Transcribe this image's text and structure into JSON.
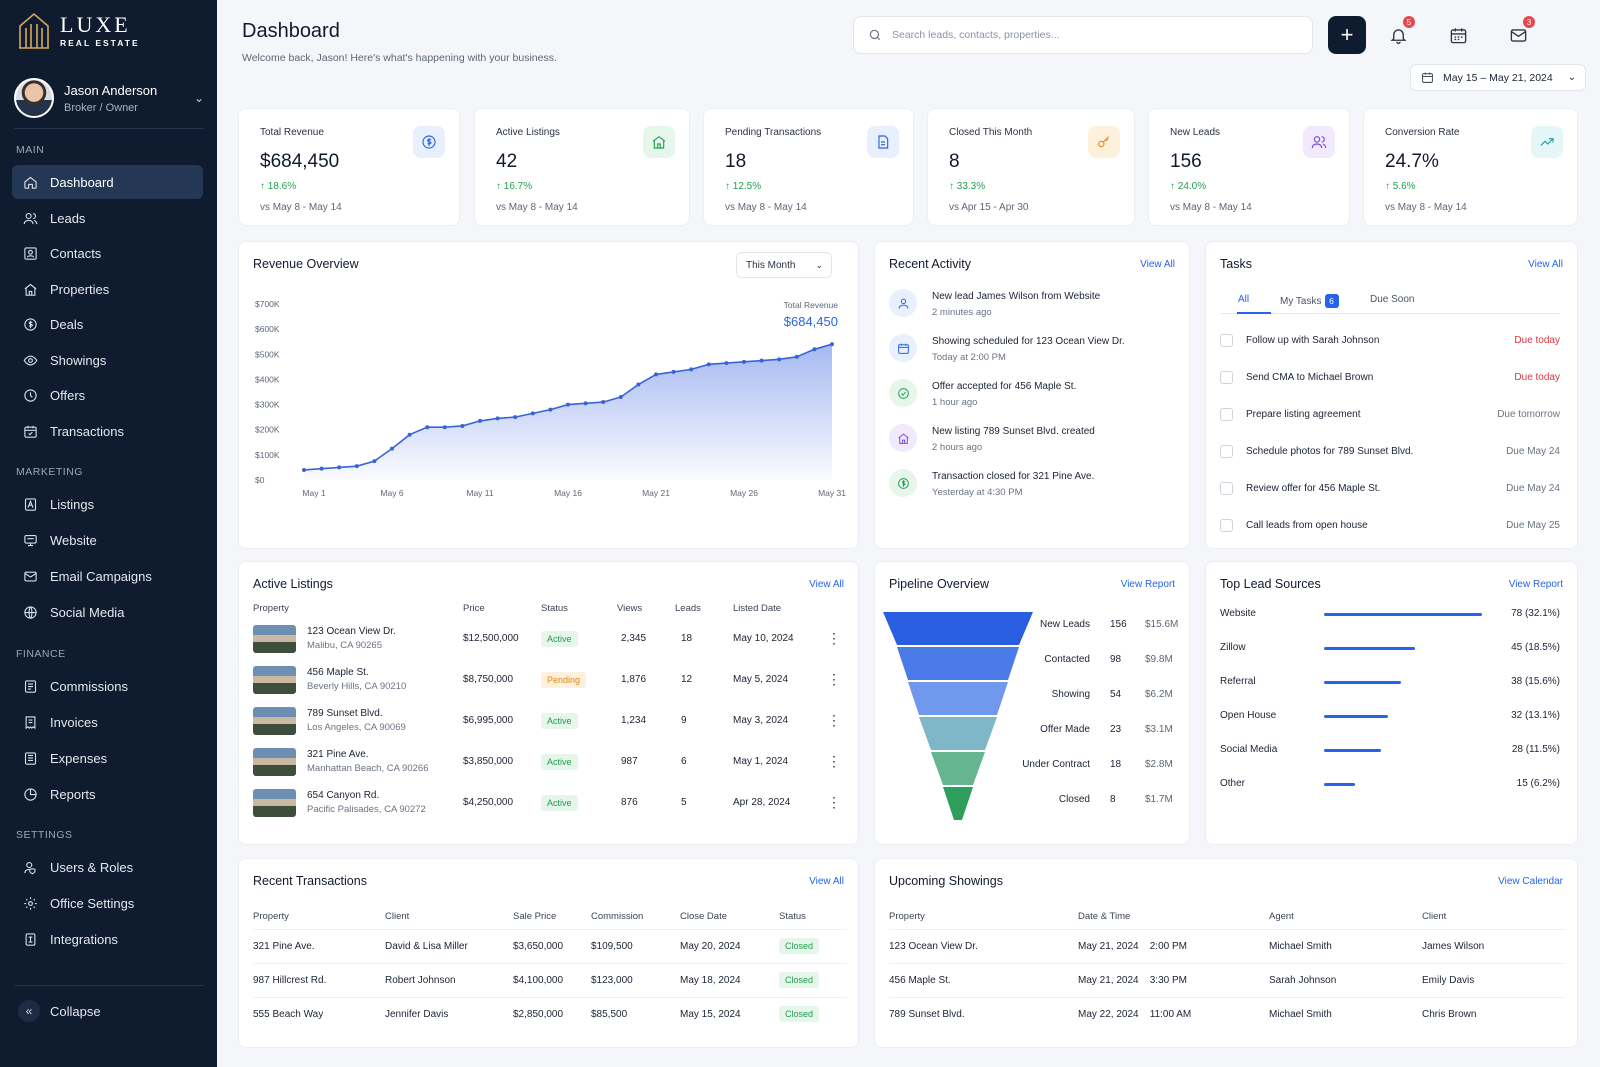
{
  "brand": {
    "name": "LUXE",
    "sub": "REAL ESTATE"
  },
  "profile": {
    "name": "Jason Anderson",
    "role": "Broker / Owner"
  },
  "sidebar": {
    "sections": [
      "MAIN",
      "MARKETING",
      "FINANCE",
      "SETTINGS"
    ],
    "main": [
      {
        "label": "Dashboard",
        "icon": "home-icon"
      },
      {
        "label": "Leads",
        "icon": "users-icon"
      },
      {
        "label": "Contacts",
        "icon": "contact-card-icon"
      },
      {
        "label": "Properties",
        "icon": "house-icon"
      },
      {
        "label": "Deals",
        "icon": "dollar-circle-icon"
      },
      {
        "label": "Showings",
        "icon": "eye-icon"
      },
      {
        "label": "Offers",
        "icon": "tag-icon"
      },
      {
        "label": "Transactions",
        "icon": "calendar-check-icon"
      }
    ],
    "marketing": [
      {
        "label": "Listings",
        "icon": "list-icon"
      },
      {
        "label": "Website",
        "icon": "monitor-icon"
      },
      {
        "label": "Email Campaigns",
        "icon": "mail-icon"
      },
      {
        "label": "Social Media",
        "icon": "globe-icon"
      }
    ],
    "finance": [
      {
        "label": "Commissions",
        "icon": "receipt-icon"
      },
      {
        "label": "Invoices",
        "icon": "invoice-icon"
      },
      {
        "label": "Expenses",
        "icon": "expense-icon"
      },
      {
        "label": "Reports",
        "icon": "chart-icon"
      }
    ],
    "settings": [
      {
        "label": "Users & Roles",
        "icon": "user-shield-icon"
      },
      {
        "label": "Office Settings",
        "icon": "gear-icon"
      },
      {
        "label": "Integrations",
        "icon": "plug-icon"
      }
    ],
    "collapse": "Collapse"
  },
  "header": {
    "title": "Dashboard",
    "subtitle": "Welcome back, Jason! Here's what's happening with your business.",
    "search_placeholder": "Search leads, contacts, properties...",
    "add_label": "+",
    "notif_count": "5",
    "msg_count": "3",
    "date_range": "May 15 – May 21, 2024"
  },
  "kpis": [
    {
      "label": "Total Revenue",
      "value": "$684,450",
      "delta": "18.6%",
      "compare": "vs May 8 - May 14",
      "icon": "dollar-icon",
      "color": "#2563eb",
      "bg": "#e8effd"
    },
    {
      "label": "Active Listings",
      "value": "42",
      "delta": "16.7%",
      "compare": "vs May 8 - May 14",
      "icon": "house-icon",
      "color": "#22a052",
      "bg": "#e6f6ea"
    },
    {
      "label": "Pending Transactions",
      "value": "18",
      "delta": "12.5%",
      "compare": "vs May 8 - May 14",
      "icon": "document-icon",
      "color": "#2563eb",
      "bg": "#e8effd"
    },
    {
      "label": "Closed This Month",
      "value": "8",
      "delta": "33.3%",
      "compare": "vs Apr 15 - Apr 30",
      "icon": "key-icon",
      "color": "#e38b1c",
      "bg": "#fdf1de"
    },
    {
      "label": "New Leads",
      "value": "156",
      "delta": "24.0%",
      "compare": "vs May 8 - May 14",
      "icon": "users-icon",
      "color": "#7c4ddb",
      "bg": "#f0eafc"
    },
    {
      "label": "Conversion Rate",
      "value": "24.7%",
      "delta": "5.6%",
      "compare": "vs May 8 - May 14",
      "icon": "trend-up-icon",
      "color": "#14a3a0",
      "bg": "#e4f6f5"
    }
  ],
  "revenue": {
    "title": "Revenue Overview",
    "period": "This Month",
    "total_label": "Total Revenue",
    "total_value": "$684,450",
    "y_ticks": [
      "$700K",
      "$600K",
      "$500K",
      "$400K",
      "$300K",
      "$200K",
      "$100K",
      "$0"
    ],
    "x_ticks": [
      "May 1",
      "May 6",
      "May 11",
      "May 16",
      "May 21",
      "May 26",
      "May 31"
    ]
  },
  "chart_data": {
    "type": "area",
    "title": "Revenue Overview",
    "ylim": [
      0,
      700000
    ],
    "x": [
      1,
      2,
      3,
      4,
      5,
      6,
      7,
      8,
      9,
      10,
      11,
      12,
      13,
      14,
      15,
      16,
      17,
      18,
      19,
      20,
      21,
      22,
      23,
      24,
      25,
      26,
      27,
      28,
      29,
      30,
      31
    ],
    "values": [
      40000,
      45000,
      50000,
      55000,
      75000,
      125000,
      180000,
      210000,
      210000,
      215000,
      235000,
      245000,
      250000,
      265000,
      280000,
      300000,
      305000,
      310000,
      330000,
      380000,
      420000,
      430000,
      440000,
      460000,
      465000,
      470000,
      475000,
      480000,
      490000,
      520000,
      540000
    ],
    "grid": false
  },
  "activity": {
    "title": "Recent Activity",
    "view_all": "View All",
    "items": [
      {
        "text": "New lead James Wilson from Website",
        "time": "2 minutes ago",
        "icon": "user-icon",
        "color": "#2563eb",
        "bg": "#e8effd"
      },
      {
        "text": "Showing scheduled for 123 Ocean View Dr.",
        "time": "Today at 2:00 PM",
        "icon": "calendar-icon",
        "color": "#2563eb",
        "bg": "#e8effd"
      },
      {
        "text": "Offer accepted for 456 Maple St.",
        "time": "1 hour ago",
        "icon": "check-circle-icon",
        "color": "#22a052",
        "bg": "#e6f6ea"
      },
      {
        "text": "New listing 789 Sunset Blvd. created",
        "time": "2 hours ago",
        "icon": "house-icon",
        "color": "#7c4ddb",
        "bg": "#f0eafc"
      },
      {
        "text": "Transaction closed for 321 Pine Ave.",
        "time": "Yesterday at 4:30 PM",
        "icon": "dollar-icon",
        "color": "#22a052",
        "bg": "#e6f6ea"
      }
    ]
  },
  "tasks": {
    "title": "Tasks",
    "view_all": "View All",
    "tabs": {
      "all": "All",
      "mine": "My Tasks",
      "mine_count": "6",
      "soon": "Due Soon"
    },
    "items": [
      {
        "text": "Follow up with Sarah Johnson",
        "due": "Due today",
        "urgent": true
      },
      {
        "text": "Send CMA to Michael Brown",
        "due": "Due today",
        "urgent": true
      },
      {
        "text": "Prepare listing agreement",
        "due": "Due tomorrow",
        "urgent": false
      },
      {
        "text": "Schedule photos for 789 Sunset Blvd.",
        "due": "Due May 24",
        "urgent": false
      },
      {
        "text": "Review offer for 456 Maple St.",
        "due": "Due May 24",
        "urgent": false
      },
      {
        "text": "Call leads from open house",
        "due": "Due May 25",
        "urgent": false
      }
    ]
  },
  "listings": {
    "title": "Active Listings",
    "view_all": "View All",
    "headers": [
      "Property",
      "Price",
      "Status",
      "Views",
      "Leads",
      "Listed Date"
    ],
    "rows": [
      {
        "name": "123 Ocean View Dr.",
        "addr": "Malibu, CA 90265",
        "price": "$12,500,000",
        "status": "Active",
        "views": "2,345",
        "leads": "18",
        "date": "May 10, 2024"
      },
      {
        "name": "456 Maple St.",
        "addr": "Beverly Hills, CA 90210",
        "price": "$8,750,000",
        "status": "Pending",
        "views": "1,876",
        "leads": "12",
        "date": "May 5, 2024"
      },
      {
        "name": "789 Sunset Blvd.",
        "addr": "Los Angeles, CA 90069",
        "price": "$6,995,000",
        "status": "Active",
        "views": "1,234",
        "leads": "9",
        "date": "May 3, 2024"
      },
      {
        "name": "321 Pine Ave.",
        "addr": "Manhattan Beach, CA 90266",
        "price": "$3,850,000",
        "status": "Active",
        "views": "987",
        "leads": "6",
        "date": "May 1, 2024"
      },
      {
        "name": "654 Canyon Rd.",
        "addr": "Pacific Palisades, CA 90272",
        "price": "$4,250,000",
        "status": "Active",
        "views": "876",
        "leads": "5",
        "date": "Apr 28, 2024"
      }
    ]
  },
  "pipeline": {
    "title": "Pipeline Overview",
    "view_report": "View Report",
    "stages": [
      {
        "name": "New Leads",
        "count": "156",
        "value": "$15.6M",
        "color": "#2a5ee0"
      },
      {
        "name": "Contacted",
        "count": "98",
        "value": "$9.8M",
        "color": "#4a7be8"
      },
      {
        "name": "Showing",
        "count": "54",
        "value": "$6.2M",
        "color": "#7098ec"
      },
      {
        "name": "Offer Made",
        "count": "23",
        "value": "$3.1M",
        "color": "#7fb6c8"
      },
      {
        "name": "Under Contract",
        "count": "18",
        "value": "$2.8M",
        "color": "#66b591"
      },
      {
        "name": "Closed",
        "count": "8",
        "value": "$1.7M",
        "color": "#2f9e5c"
      }
    ]
  },
  "sources": {
    "title": "Top Lead Sources",
    "view_report": "View Report",
    "items": [
      {
        "name": "Website",
        "value": "78 (32.1%)",
        "share": 32.1
      },
      {
        "name": "Zillow",
        "value": "45 (18.5%)",
        "share": 18.5
      },
      {
        "name": "Referral",
        "value": "38 (15.6%)",
        "share": 15.6
      },
      {
        "name": "Open House",
        "value": "32 (13.1%)",
        "share": 13.1
      },
      {
        "name": "Social Media",
        "value": "28 (11.5%)",
        "share": 11.5
      },
      {
        "name": "Other",
        "value": "15 (6.2%)",
        "share": 6.2
      }
    ]
  },
  "transactions": {
    "title": "Recent Transactions",
    "view_all": "View All",
    "headers": [
      "Property",
      "Client",
      "Sale Price",
      "Commission",
      "Close Date",
      "Status"
    ],
    "rows": [
      {
        "property": "321 Pine Ave.",
        "client": "David & Lisa Miller",
        "price": "$3,650,000",
        "commission": "$109,500",
        "date": "May 20, 2024",
        "status": "Closed"
      },
      {
        "property": "987 Hillcrest Rd.",
        "client": "Robert Johnson",
        "price": "$4,100,000",
        "commission": "$123,000",
        "date": "May 18, 2024",
        "status": "Closed"
      },
      {
        "property": "555 Beach Way",
        "client": "Jennifer Davis",
        "price": "$2,850,000",
        "commission": "$85,500",
        "date": "May 15, 2024",
        "status": "Closed"
      }
    ]
  },
  "showings": {
    "title": "Upcoming Showings",
    "view_calendar": "View Calendar",
    "headers": [
      "Property",
      "Date & Time",
      "Agent",
      "Client"
    ],
    "rows": [
      {
        "property": "123 Ocean View Dr.",
        "date": "May 21, 2024",
        "time": "2:00 PM",
        "agent": "Michael Smith",
        "client": "James Wilson"
      },
      {
        "property": "456 Maple St.",
        "date": "May 21, 2024",
        "time": "3:30 PM",
        "agent": "Sarah Johnson",
        "client": "Emily Davis"
      },
      {
        "property": "789 Sunset Blvd.",
        "date": "May 22, 2024",
        "time": "11:00 AM",
        "agent": "Michael Smith",
        "client": "Chris Brown"
      }
    ]
  }
}
